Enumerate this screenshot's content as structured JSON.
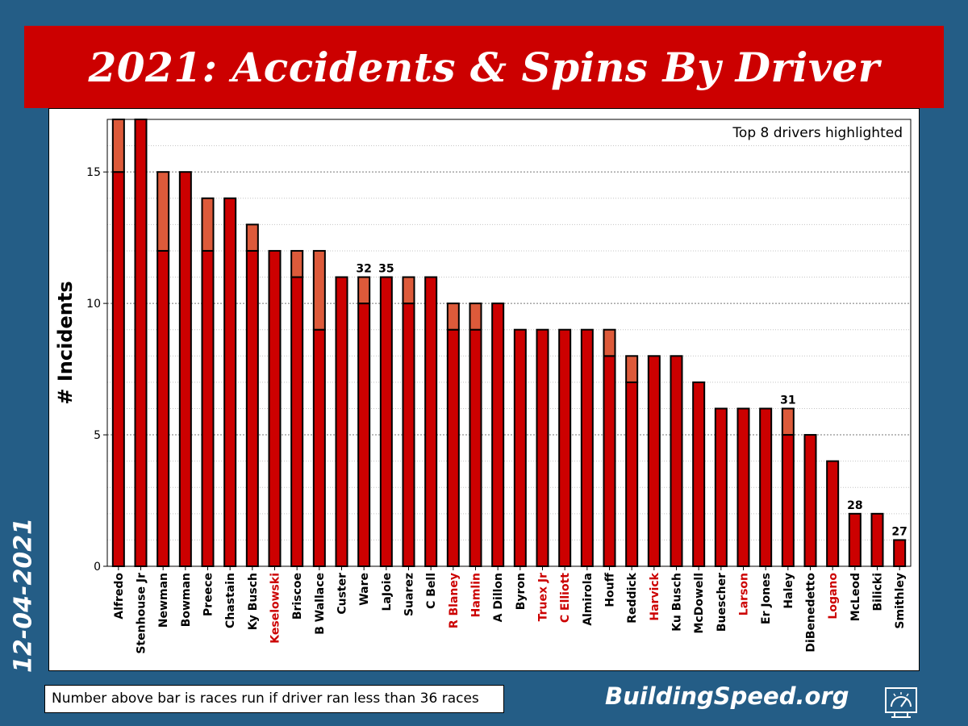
{
  "title": "2021: Accidents & Spins By Driver",
  "date": "12-04-2021",
  "footnote": "Number above bar is races run if driver ran less than 36 races",
  "brand": "BuildingSpeed.org",
  "colors": {
    "background": "#245d86",
    "title_bar": "#cc0000",
    "accidents": "#cc0000",
    "spins": "#dd5a3a",
    "highlight_label": "#cc0000"
  },
  "chart_data": {
    "type": "bar",
    "stacked": true,
    "annotation": "Top 8 drivers highlighted",
    "ylabel": "# Incidents",
    "ylim": [
      0,
      17
    ],
    "yticks": [
      0,
      5,
      10,
      15
    ],
    "grid": "horizontal dotted",
    "categories": [
      "Alfredo",
      "Stenhouse Jr",
      "Newman",
      "Bowman",
      "Preece",
      "Chastain",
      "Ky Busch",
      "Keselowski",
      "Briscoe",
      "B Wallace",
      "Custer",
      "Ware",
      "LaJoie",
      "Suarez",
      "C Bell",
      "R Blaney",
      "Hamlin",
      "A Dillon",
      "Byron",
      "Truex Jr",
      "C Elliott",
      "Almirola",
      "Houff",
      "Reddick",
      "Harvick",
      "Ku Busch",
      "McDowell",
      "Buescher",
      "Larson",
      "Er Jones",
      "Haley",
      "DiBenedetto",
      "Logano",
      "McLeod",
      "Bilicki",
      "Smithley"
    ],
    "highlighted": [
      "Keselowski",
      "R Blaney",
      "Hamlin",
      "Truex Jr",
      "C Elliott",
      "Harvick",
      "Larson",
      "Logano"
    ],
    "series": [
      {
        "values": [
          15,
          17,
          12,
          15,
          12,
          14,
          12,
          12,
          11,
          9,
          11,
          10,
          11,
          10,
          11,
          9,
          9,
          10,
          9,
          9,
          9,
          9,
          8,
          7,
          8,
          8,
          7,
          6,
          6,
          6,
          5,
          5,
          4,
          2,
          2,
          1
        ]
      },
      {
        "values": [
          2,
          0,
          3,
          0,
          2,
          0,
          1,
          0,
          1,
          3,
          0,
          1,
          0,
          1,
          0,
          1,
          1,
          0,
          0,
          0,
          0,
          0,
          1,
          1,
          0,
          0,
          0,
          0,
          0,
          0,
          1,
          0,
          0,
          0,
          0,
          0
        ]
      }
    ],
    "races_run": [
      {
        "driver": "Ware",
        "value": "32"
      },
      {
        "driver": "LaJoie",
        "value": "35"
      },
      {
        "driver": "Haley",
        "value": "31"
      },
      {
        "driver": "McLeod",
        "value": "28"
      },
      {
        "driver": "Smithley",
        "value": "27"
      }
    ]
  }
}
